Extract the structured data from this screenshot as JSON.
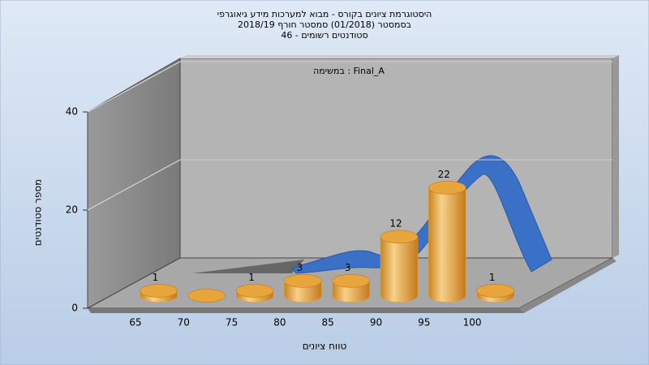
{
  "chart_data": {
    "type": "bar",
    "title": "היסטוגרמת ציונים בקורס - מבוא למערכות מידע גיאוגרפי",
    "subtitle_lines": [
      "בסמסטר  (01/2018)  סמסטר חורף 2018/19",
      "סטודנטים רשומים - 46"
    ],
    "annotation": "במשימה : Final_A",
    "x_label": "טווח ציונים",
    "y_label": "מספר סטודנטים",
    "categories": [
      "65",
      "70",
      "75",
      "80",
      "85",
      "90",
      "95",
      "100"
    ],
    "values": [
      1,
      0,
      1,
      3,
      3,
      12,
      22,
      1
    ],
    "value_labels": [
      "1",
      null,
      "1",
      "3",
      "3",
      "12",
      "22",
      "1"
    ],
    "color": "#e8a53c",
    "ylim": [
      0,
      40
    ],
    "yticks": [
      0,
      20,
      40
    ],
    "grid": true
  }
}
